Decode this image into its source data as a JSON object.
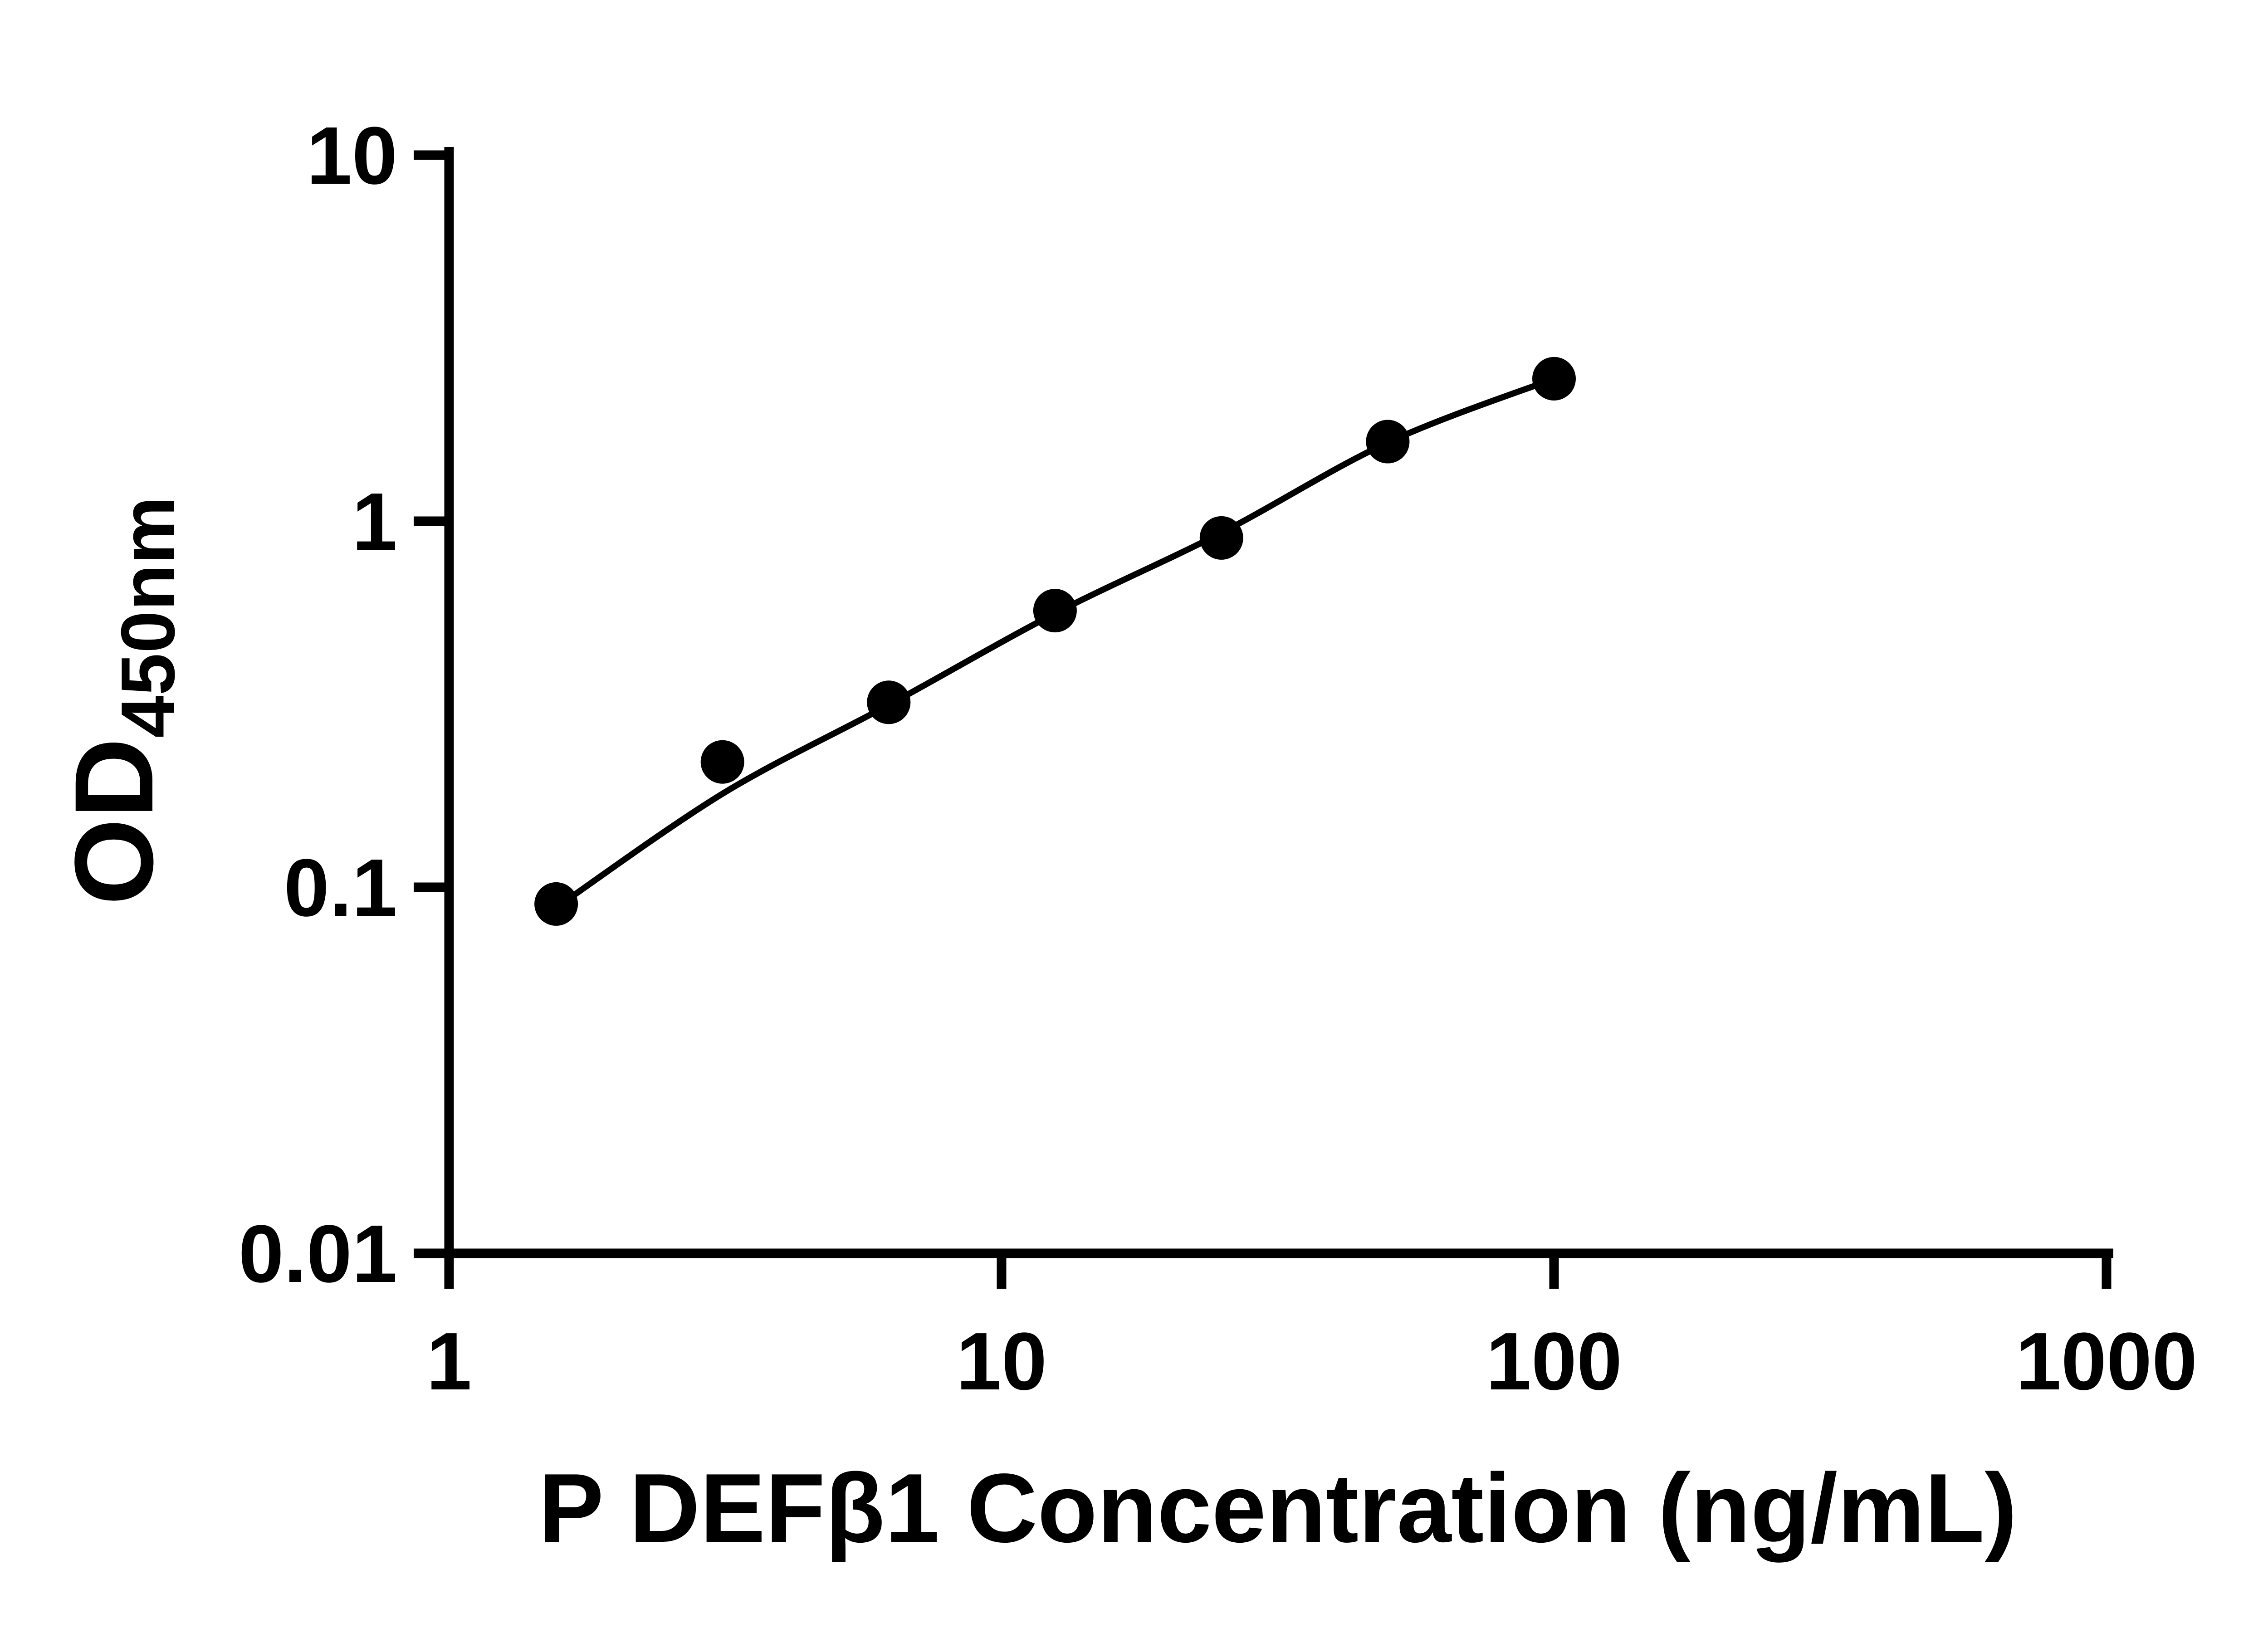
{
  "chart_data": {
    "type": "scatter",
    "title": "",
    "xlabel": "P DEFβ1 Concentration (ng/mL)",
    "ylabel_base": "OD",
    "ylabel_sub": "450nm",
    "xscale": "log10",
    "yscale": "log10",
    "xlim": [
      1,
      1000
    ],
    "ylim": [
      0.01,
      10
    ],
    "x_ticks": [
      1,
      10,
      100,
      1000
    ],
    "x_tick_labels": [
      "1",
      "10",
      "100",
      "1000"
    ],
    "y_ticks": [
      0.01,
      0.1,
      1,
      10
    ],
    "y_tick_labels": [
      "0.01",
      "0.1",
      "1",
      "10"
    ],
    "grid": false,
    "legend": "none",
    "marker_color": "#000000",
    "line_color": "#000000",
    "points": {
      "x": [
        1.5625,
        3.125,
        6.25,
        12.5,
        25,
        50,
        100
      ],
      "y": [
        0.09,
        0.22,
        0.32,
        0.57,
        0.9,
        1.65,
        2.45
      ]
    },
    "trend": {
      "x": [
        1.5625,
        3.125,
        6.25,
        12.5,
        25,
        50,
        100
      ],
      "y": [
        0.088,
        0.18,
        0.315,
        0.56,
        0.93,
        1.64,
        2.45
      ]
    }
  }
}
